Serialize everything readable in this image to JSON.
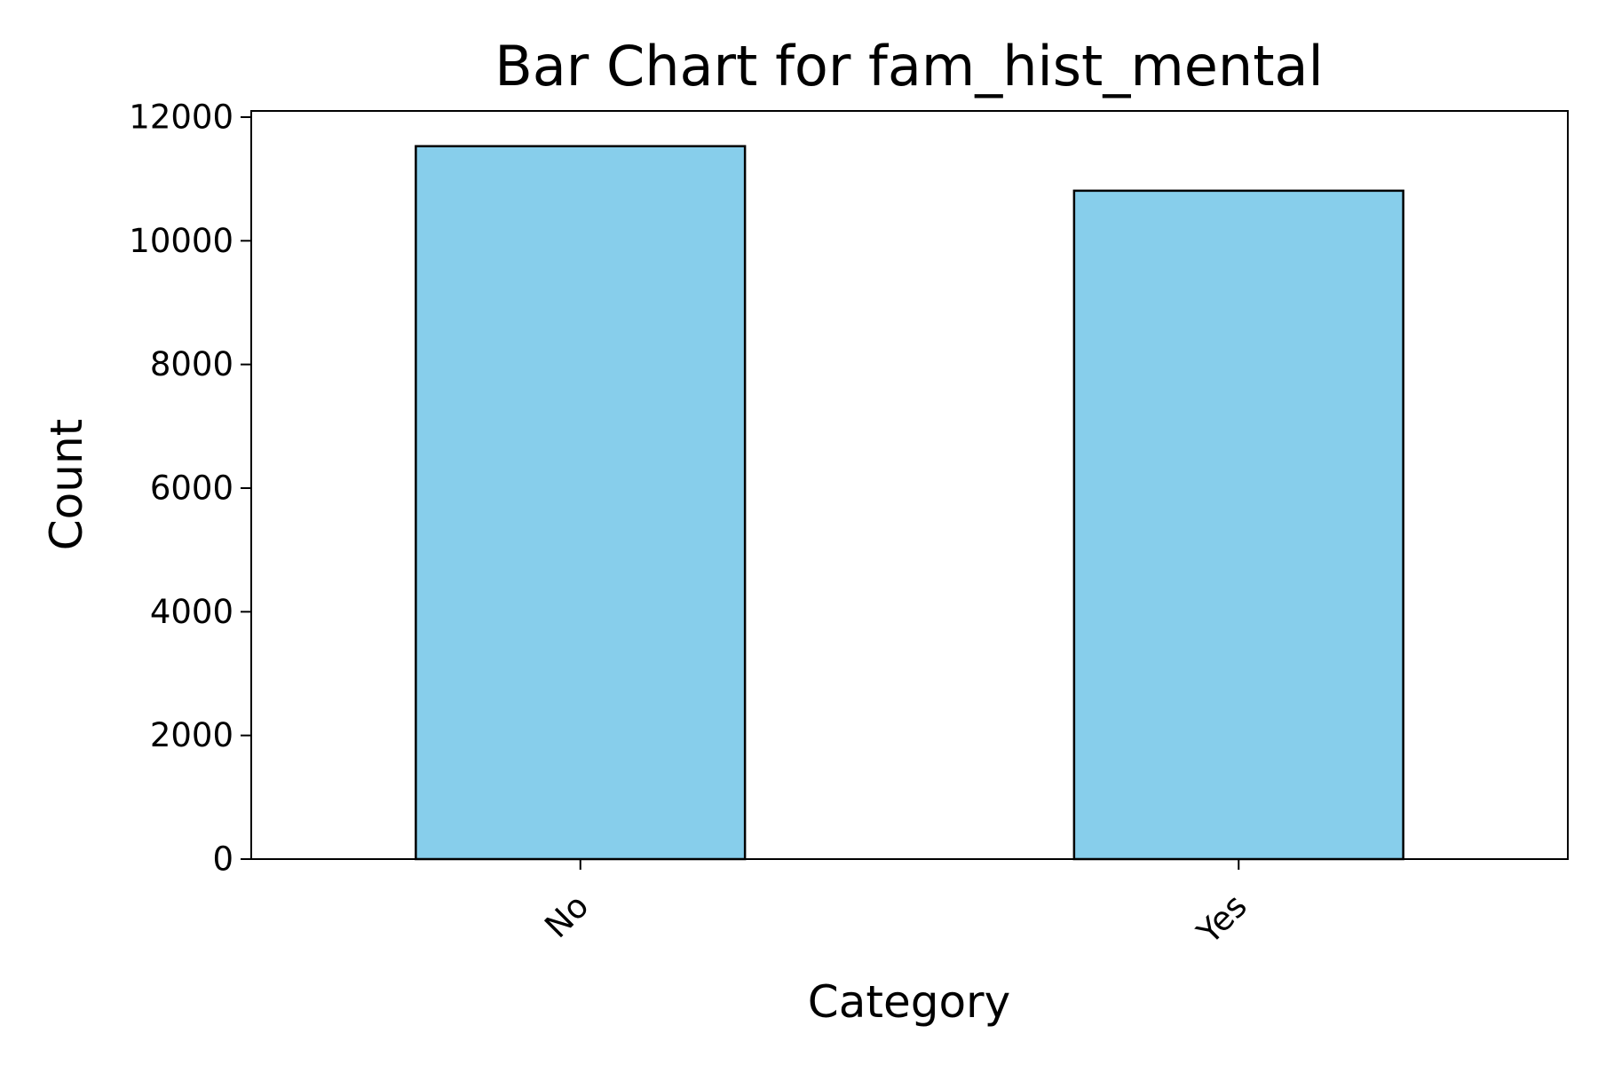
{
  "chart_data": {
    "type": "bar",
    "title": "Bar Chart for fam_hist_mental",
    "xlabel": "Category",
    "ylabel": "Count",
    "categories": [
      "No",
      "Yes"
    ],
    "values": [
      11530,
      10810
    ],
    "ylim": [
      0,
      12100
    ],
    "yticks": [
      0,
      2000,
      4000,
      6000,
      8000,
      10000,
      12000
    ],
    "ytick_labels": [
      "0",
      "2000",
      "4000",
      "6000",
      "8000",
      "10000",
      "12000"
    ],
    "bar_color": "#87ceeb",
    "edge_color": "#000000",
    "grid": false,
    "legend": "none"
  }
}
